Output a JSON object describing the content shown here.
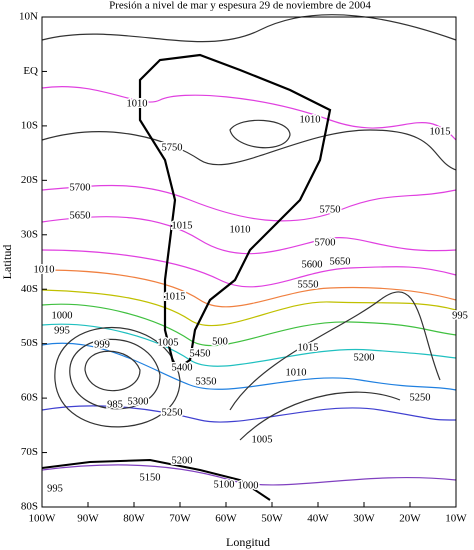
{
  "title": "Presión a nivel de mar y espesura 29 de noviembre de 2004",
  "x_label": "Longitud",
  "y_label": "Latitud",
  "x_ticks": [
    "100W",
    "90W",
    "80W",
    "70W",
    "60W",
    "50W",
    "40W",
    "30W",
    "20W",
    "10W"
  ],
  "y_ticks": [
    "10N",
    "EQ",
    "10S",
    "20S",
    "30S",
    "40S",
    "50S",
    "60S",
    "70S",
    "80S"
  ],
  "contour_labels": [
    "1010",
    "1010",
    "1015",
    "5750",
    "5700",
    "5650",
    "5750",
    "1015",
    "1010",
    "5700",
    "5650",
    "5600",
    "1010",
    "5550",
    "1015",
    "1000",
    "995",
    "995",
    "999",
    "500",
    "1005",
    "5450",
    "5400",
    "1015",
    "5200",
    "1010",
    "5350",
    "985",
    "5300",
    "5250",
    "5250",
    "1005",
    "5200",
    "5150",
    "1000",
    "5100",
    "995"
  ]
}
